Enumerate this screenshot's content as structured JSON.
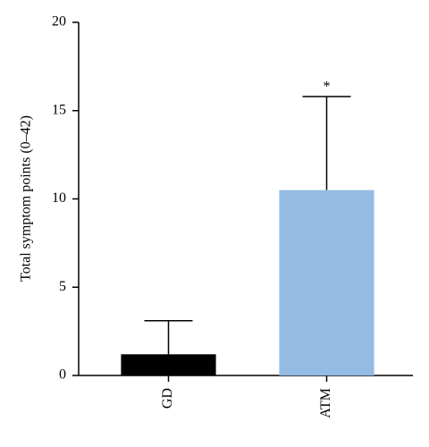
{
  "chart_data": {
    "type": "bar",
    "ylabel": "Total symptom points (0–42)",
    "categories": [
      "GD",
      "ATM"
    ],
    "values": [
      1.2,
      10.5
    ],
    "errors": [
      1.9,
      5.3
    ],
    "colors": [
      "#000000",
      "#94bbe3"
    ],
    "annotation": {
      "text": "*",
      "category": "ATM"
    },
    "ylim": [
      0,
      20
    ],
    "yticks": [
      0,
      5,
      10,
      15,
      20
    ]
  }
}
